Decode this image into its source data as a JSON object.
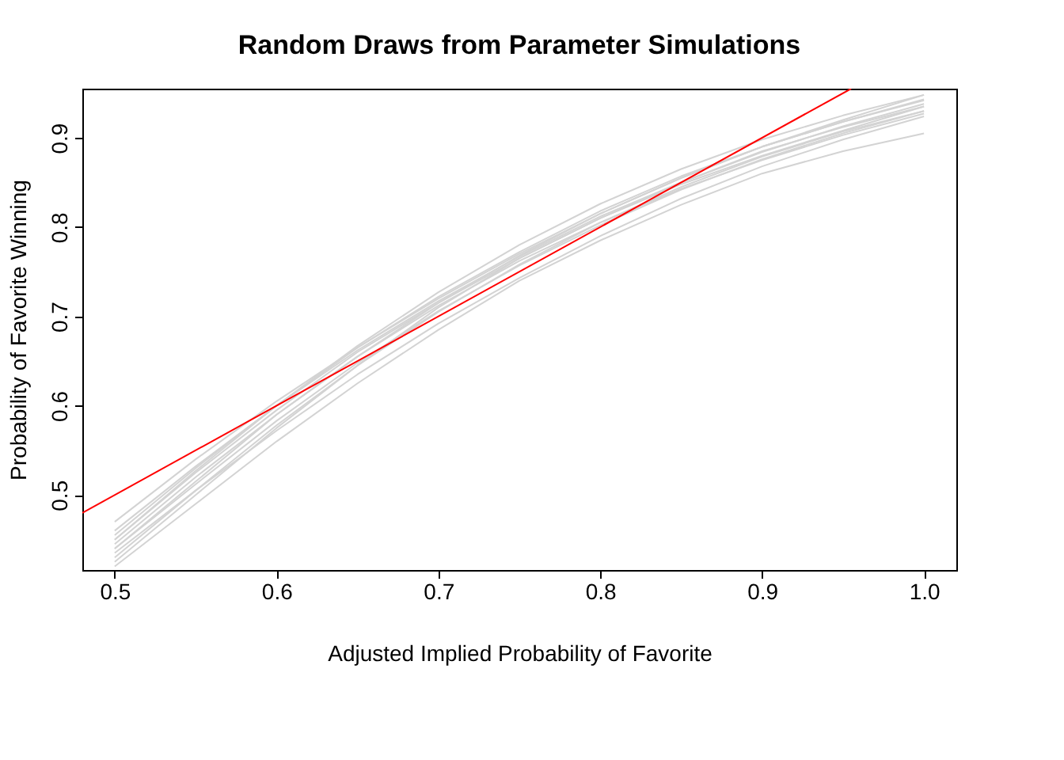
{
  "chart_data": {
    "type": "line",
    "title": "Random Draws from Parameter Simulations",
    "xlabel": "Adjusted Implied Probability of Favorite",
    "ylabel": "Probability of Favorite Winning",
    "x": [
      0.5,
      0.55,
      0.6,
      0.65,
      0.7,
      0.75,
      0.8,
      0.85,
      0.9,
      0.95,
      1.0
    ],
    "xlim": [
      0.48,
      1.02
    ],
    "xticks": [
      0.5,
      0.6,
      0.7,
      0.8,
      0.9,
      {
        "value": 1.0,
        "label": "1.0"
      }
    ],
    "ylim": [
      0.416,
      0.955
    ],
    "yticks": [
      0.5,
      0.6,
      0.7,
      0.8,
      0.9
    ],
    "grid": false,
    "marker": "none",
    "line_style": "solid",
    "series": [
      {
        "color": "#d3d3d3",
        "values": [
          0.45,
          0.525,
          0.595,
          0.66,
          0.715,
          0.765,
          0.81,
          0.848,
          0.88,
          0.908,
          0.935
        ]
      },
      {
        "color": "#d3d3d3",
        "values": [
          0.42,
          0.49,
          0.56,
          0.625,
          0.685,
          0.74,
          0.785,
          0.825,
          0.86,
          0.885,
          0.905
        ]
      },
      {
        "color": "#d3d3d3",
        "values": [
          0.425,
          0.5,
          0.575,
          0.645,
          0.71,
          0.765,
          0.81,
          0.85,
          0.885,
          0.912,
          0.935
        ]
      },
      {
        "color": "#d3d3d3",
        "values": [
          0.47,
          0.54,
          0.605,
          0.665,
          0.72,
          0.77,
          0.815,
          0.855,
          0.89,
          0.92,
          0.948
        ]
      },
      {
        "color": "#d3d3d3",
        "values": [
          0.44,
          0.515,
          0.59,
          0.655,
          0.715,
          0.768,
          0.815,
          0.855,
          0.89,
          0.918,
          0.942
        ]
      },
      {
        "color": "#d3d3d3",
        "values": [
          0.455,
          0.53,
          0.6,
          0.665,
          0.722,
          0.772,
          0.818,
          0.857,
          0.89,
          0.918,
          0.943
        ]
      },
      {
        "color": "#d3d3d3",
        "values": [
          0.445,
          0.52,
          0.59,
          0.655,
          0.712,
          0.762,
          0.805,
          0.843,
          0.875,
          0.903,
          0.927
        ]
      },
      {
        "color": "#d3d3d3",
        "values": [
          0.43,
          0.505,
          0.578,
          0.645,
          0.705,
          0.758,
          0.805,
          0.845,
          0.879,
          0.907,
          0.93
        ]
      },
      {
        "color": "#d3d3d3",
        "values": [
          0.46,
          0.532,
          0.6,
          0.662,
          0.717,
          0.767,
          0.812,
          0.85,
          0.884,
          0.913,
          0.938
        ]
      },
      {
        "color": "#d3d3d3",
        "values": [
          0.435,
          0.505,
          0.572,
          0.635,
          0.692,
          0.743,
          0.79,
          0.832,
          0.868,
          0.898,
          0.924
        ]
      },
      {
        "color": "#d3d3d3",
        "values": [
          0.45,
          0.527,
          0.6,
          0.667,
          0.727,
          0.78,
          0.826,
          0.865,
          0.898,
          0.925,
          0.948
        ]
      },
      {
        "color": "#d3d3d3",
        "values": [
          0.44,
          0.512,
          0.583,
          0.648,
          0.706,
          0.757,
          0.802,
          0.842,
          0.876,
          0.905,
          0.93
        ]
      },
      {
        "type": "line",
        "color": "#ff0000",
        "x": [
          0.48,
          0.955
        ],
        "values": [
          0.48,
          0.955
        ]
      }
    ]
  }
}
